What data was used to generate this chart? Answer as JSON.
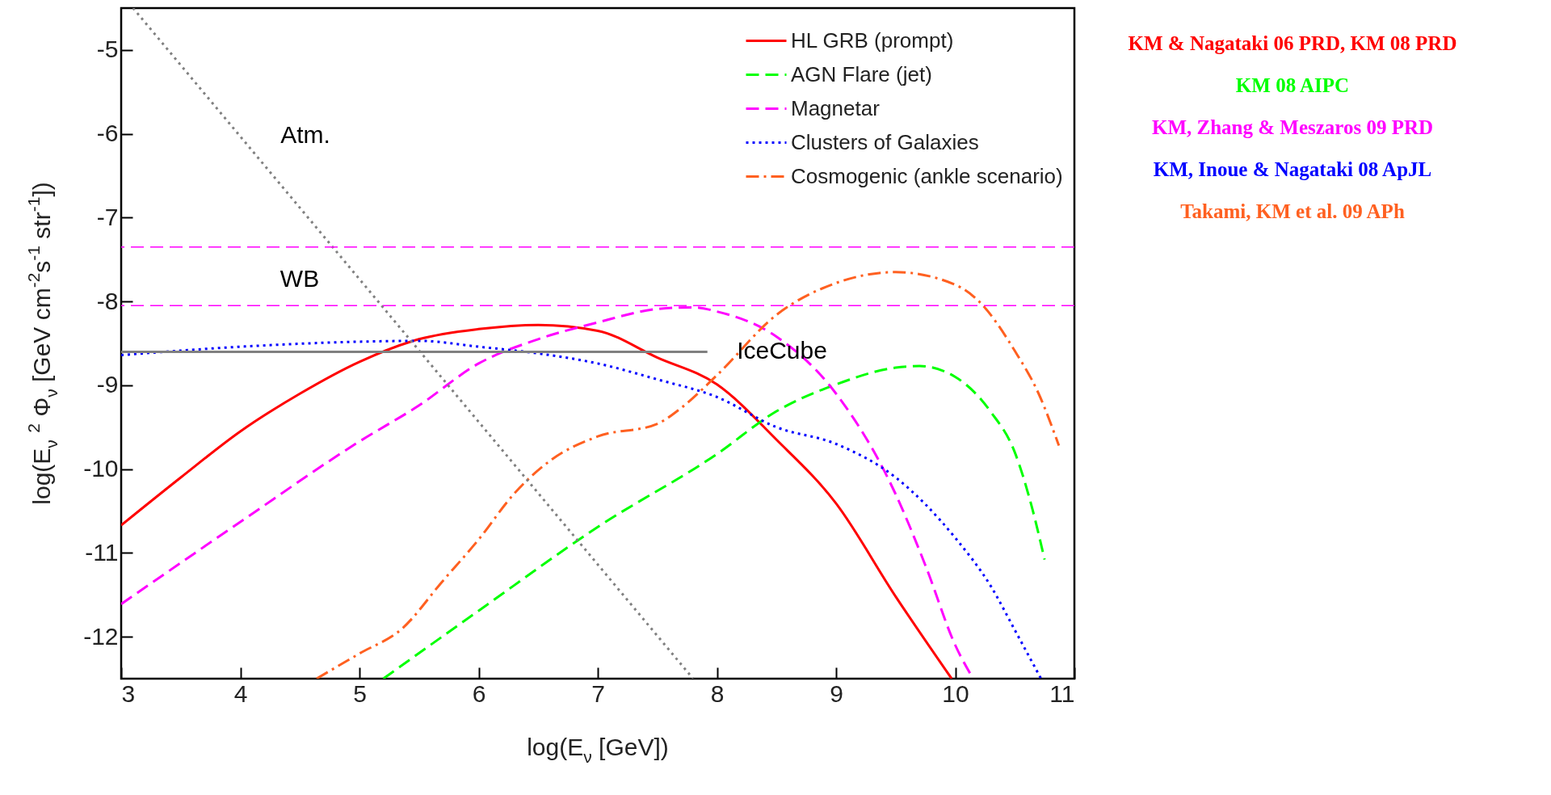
{
  "chart_data": {
    "type": "line",
    "xlabel": "log(E$_{ν}$ [GeV])",
    "ylabel": "log(E$_{ν}$ $^{2}$ Φ$_{ν}$ [GeV cm$^{-2}$s$^{-1}$ str$^{-1}$])",
    "xlim": [
      3,
      11
    ],
    "xticks": [
      3,
      4,
      5,
      6,
      7,
      8,
      9,
      10,
      11
    ],
    "ylim": [
      -12.5,
      -4.5
    ],
    "yticks": [
      -5,
      -6,
      -7,
      -8,
      -9,
      -10,
      -11,
      -12
    ],
    "grid": false,
    "legend": "top right",
    "series": [
      {
        "name": "HL GRB (prompt)",
        "color": "#ff0000",
        "line_style": "solid",
        "x": [
          3,
          3.5,
          4,
          4.5,
          5,
          5.5,
          6,
          6.5,
          7,
          7.5,
          8,
          8.5,
          9,
          9.5,
          9.97
        ],
        "values": [
          -10.67,
          -10.1,
          -9.55,
          -9.1,
          -8.72,
          -8.45,
          -8.33,
          -8.28,
          -8.35,
          -8.67,
          -8.99,
          -9.65,
          -10.41,
          -11.52,
          -12.5
        ]
      },
      {
        "name": "AGN Flare (jet)",
        "color": "#00ff00",
        "line_style": "dashed",
        "x": [
          5.2,
          6,
          7,
          8,
          8.5,
          9,
          9.5,
          9.7,
          10,
          10.3,
          10.5,
          10.65,
          10.75
        ],
        "values": [
          -12.5,
          -11.69,
          -10.69,
          -9.82,
          -9.31,
          -8.99,
          -8.79,
          -8.77,
          -8.9,
          -9.32,
          -9.8,
          -10.49,
          -11.08
        ]
      },
      {
        "name": "Magnetar",
        "color": "#ff00ff",
        "line_style": "dashed",
        "x": [
          3,
          4,
          5,
          5.5,
          6,
          6.5,
          7,
          7.5,
          7.8,
          8,
          8.5,
          9,
          9.5,
          9.75,
          10,
          10.15
        ],
        "values": [
          -11.61,
          -10.63,
          -9.67,
          -9.24,
          -8.74,
          -8.45,
          -8.25,
          -8.09,
          -8.07,
          -8.12,
          -8.42,
          -9.1,
          -10.3,
          -11.15,
          -12.1,
          -12.5
        ]
      },
      {
        "name": "Clusters of Galaxies",
        "color": "#0000ff",
        "line_style": "dotted",
        "x": [
          3,
          4,
          5,
          5.5,
          6,
          6.5,
          7,
          7.5,
          8,
          8.5,
          9,
          9.5,
          10,
          10.3,
          10.5,
          10.72
        ],
        "values": [
          -8.64,
          -8.54,
          -8.48,
          -8.47,
          -8.54,
          -8.62,
          -8.74,
          -8.93,
          -9.14,
          -9.5,
          -9.7,
          -10.1,
          -10.82,
          -11.4,
          -11.92,
          -12.5
        ]
      },
      {
        "name": "Cosmogenic (ankle scenario)",
        "color": "#ff6020",
        "line_style": "dashdot",
        "x": [
          4.64,
          5,
          5.36,
          5.69,
          6,
          6.3,
          6.6,
          7,
          7.5,
          7.7,
          8,
          8.5,
          9,
          9.5,
          10,
          10.2,
          10.5,
          10.7,
          10.87
        ],
        "values": [
          -12.5,
          -12.2,
          -11.9,
          -11.35,
          -10.84,
          -10.29,
          -9.9,
          -9.61,
          -9.46,
          -9.27,
          -8.88,
          -8.16,
          -7.78,
          -7.65,
          -7.8,
          -8.0,
          -8.59,
          -9.1,
          -9.72
        ]
      },
      {
        "color": "#808080",
        "line_style": "dotted",
        "x": [
          3.1,
          7.8
        ],
        "values": [
          -4.5,
          -12.5
        ]
      },
      {
        "color": "#808080",
        "line_style": "solid",
        "x": [
          3,
          7.92
        ],
        "values": [
          -8.6,
          -8.6
        ]
      }
    ],
    "ref_lines": [
      {
        "axis": "y",
        "value": -7.35,
        "label": "WB",
        "color": "#ff00ff",
        "line_style": "dashed"
      },
      {
        "axis": "y",
        "value": -8.05,
        "color": "#ff00ff",
        "line_style": "dashed"
      }
    ],
    "annotations": [
      "KM & Nagataki  06 PRD, KM 08 PRD",
      "KM 08 AIPC",
      "KM, Zhang & Meszaros 09 PRD",
      "KM, Inoue & Nagataki 08 ApJL",
      "Takami, KM et al. 09 APh",
      "Atm.",
      "IceCube"
    ]
  }
}
